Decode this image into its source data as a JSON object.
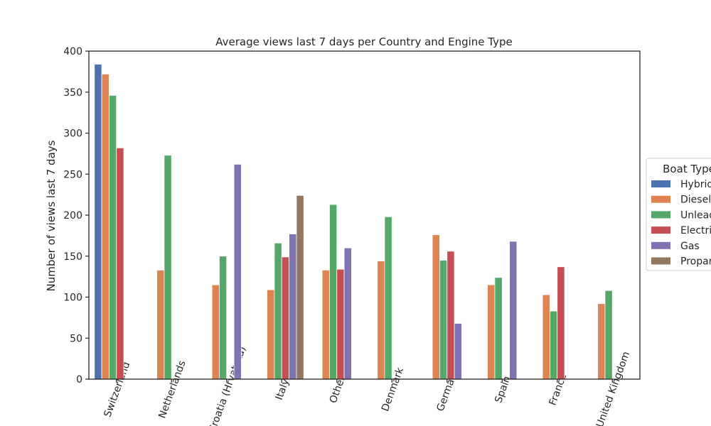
{
  "chart_data": {
    "type": "bar",
    "title": "Average views last 7 days per Country and Engine Type",
    "xlabel": "",
    "ylabel": "Number of views last 7 days",
    "ylim": [
      0,
      400
    ],
    "yticks": [
      0,
      50,
      100,
      150,
      200,
      250,
      300,
      350,
      400
    ],
    "categories": [
      "Switzerland",
      "Netherlands",
      "Croatia (Hrvatska)",
      "Italy",
      "Other",
      "Denmark",
      "Germany",
      "Spain",
      "France",
      "United Kingdom"
    ],
    "legend_title": "Boat Type",
    "legend_position": "right",
    "grid": false,
    "series": [
      {
        "name": "Hybrid",
        "color": "#4c72b0",
        "values": [
          384,
          null,
          null,
          null,
          null,
          null,
          null,
          null,
          null,
          null
        ]
      },
      {
        "name": "Diesel",
        "color": "#dd8452",
        "values": [
          372,
          133,
          115,
          109,
          133,
          144,
          176,
          115,
          103,
          92
        ]
      },
      {
        "name": "Unleaded",
        "color": "#55a868",
        "values": [
          346,
          273,
          150,
          166,
          213,
          198,
          145,
          124,
          83,
          108
        ]
      },
      {
        "name": "Electric",
        "color": "#c44e52",
        "values": [
          282,
          null,
          null,
          149,
          134,
          null,
          156,
          null,
          137,
          null
        ]
      },
      {
        "name": "Gas",
        "color": "#8172b3",
        "values": [
          null,
          null,
          262,
          177,
          160,
          null,
          68,
          168,
          null,
          null
        ]
      },
      {
        "name": "Propane",
        "color": "#937860",
        "values": [
          null,
          null,
          null,
          224,
          null,
          null,
          null,
          null,
          null,
          null
        ]
      }
    ]
  }
}
